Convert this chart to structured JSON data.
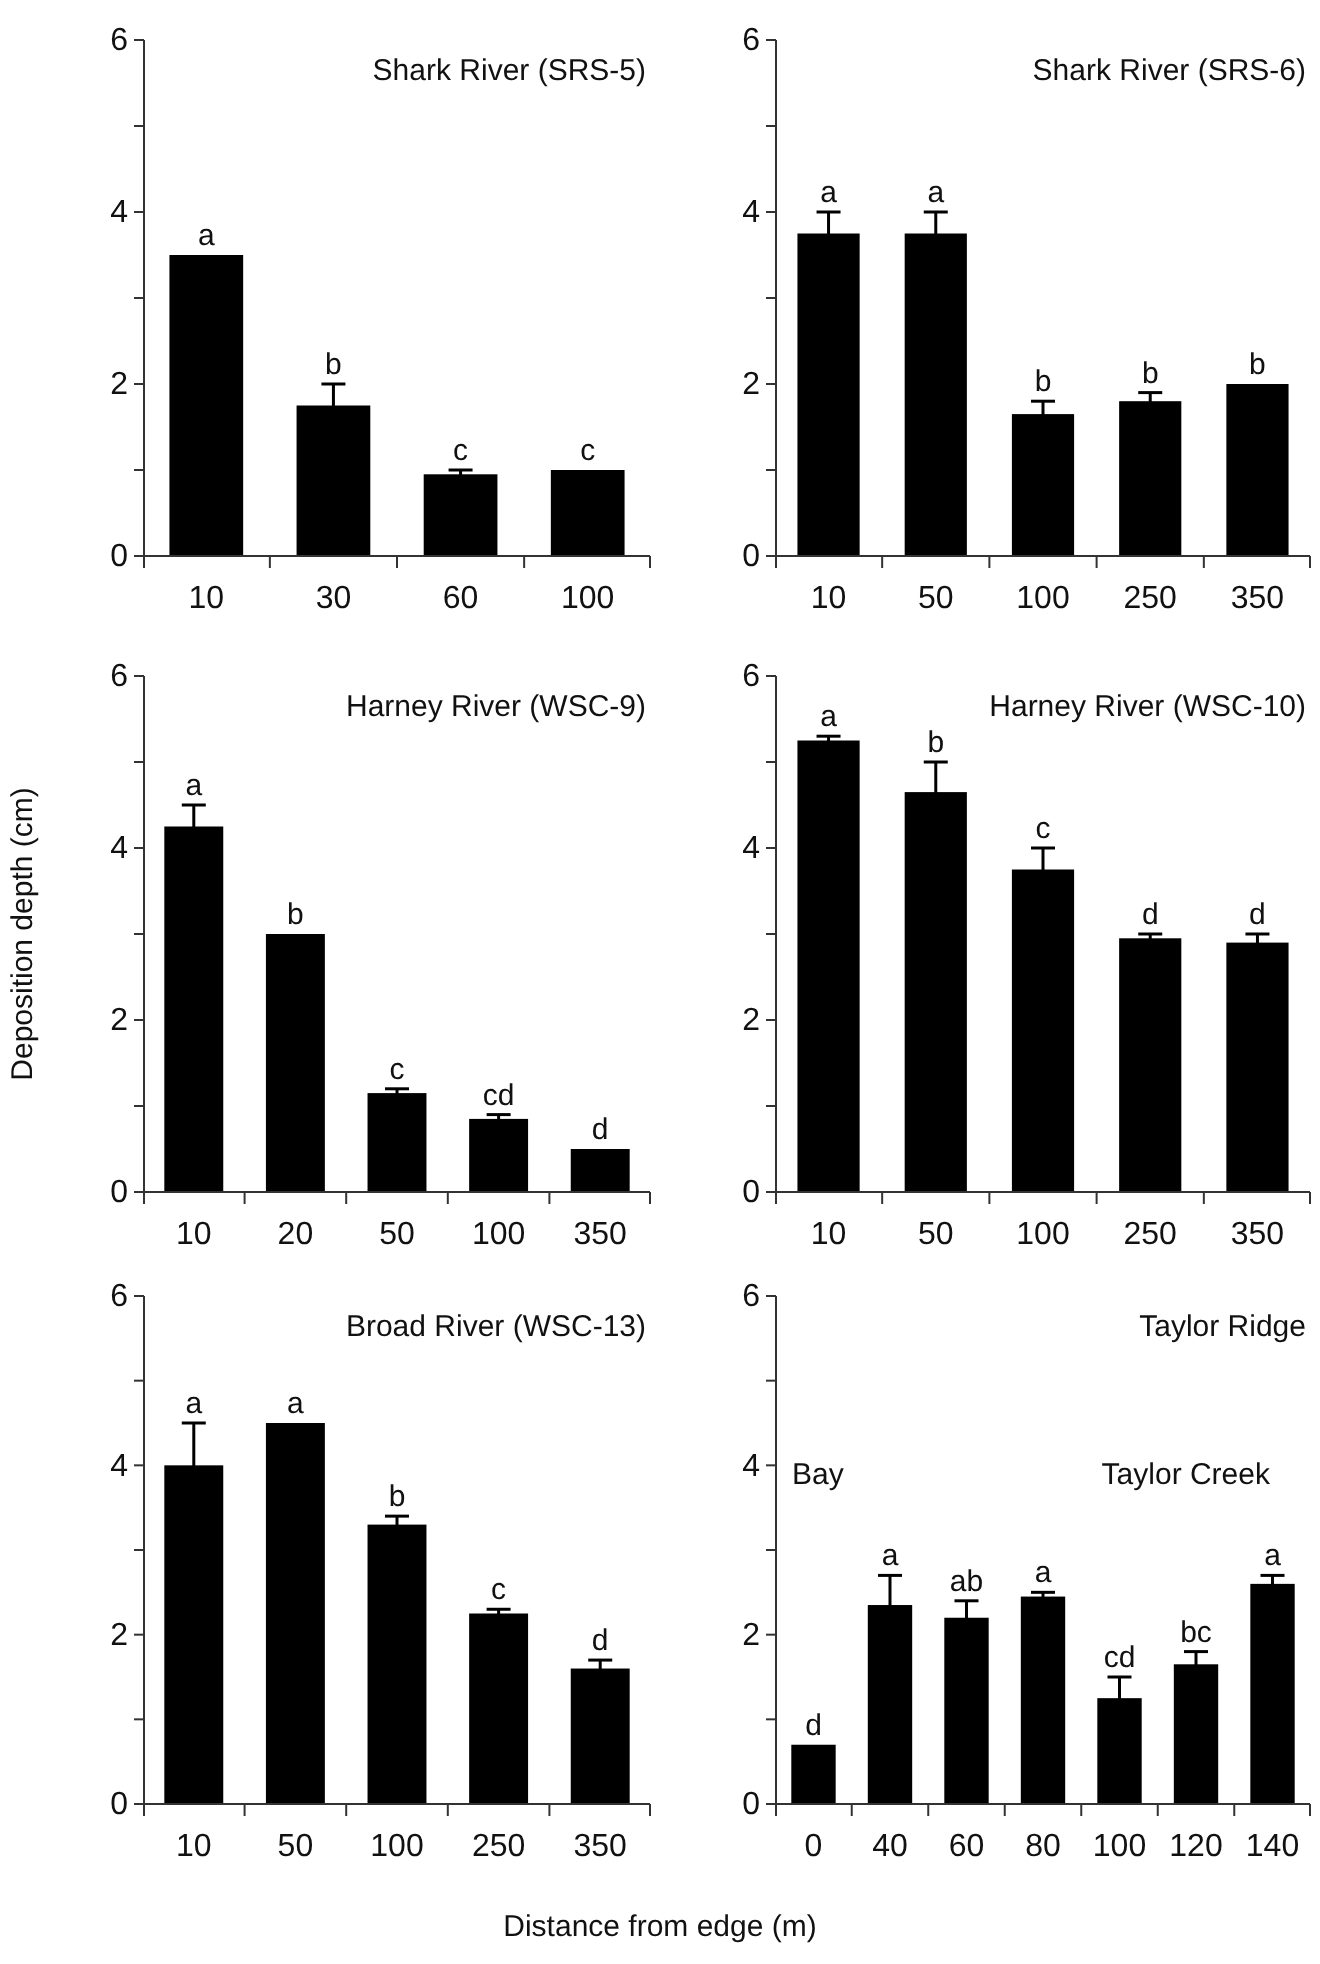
{
  "chart_data": [
    {
      "type": "bar",
      "title": "Shark River (SRS-5)",
      "categories": [
        "10",
        "30",
        "60",
        "100"
      ],
      "values": [
        3.5,
        1.75,
        0.95,
        1.0
      ],
      "errors": [
        null,
        0.25,
        0.05,
        null
      ],
      "color": "#000000",
      "ylim": [
        0,
        6
      ],
      "yticks": [
        0,
        {
          "value": 1,
          "label": null
        },
        2,
        {
          "value": 3,
          "label": null
        },
        4,
        {
          "value": 5,
          "label": null
        },
        6
      ],
      "annotations": [
        {
          "text": "a",
          "x": "10",
          "y": 3.5
        },
        {
          "text": "b",
          "x": "30",
          "y": 2.0
        },
        {
          "text": "c",
          "x": "60",
          "y": 1.0
        },
        {
          "text": "c",
          "x": "100",
          "y": 1.0
        }
      ]
    },
    {
      "type": "bar",
      "title": "Shark River (SRS-6)",
      "categories": [
        "10",
        "50",
        "100",
        "250",
        "350"
      ],
      "values": [
        3.75,
        3.75,
        1.65,
        1.8,
        2.0
      ],
      "errors": [
        0.25,
        0.25,
        0.15,
        0.1,
        null
      ],
      "color": "#000000",
      "ylim": [
        0,
        6
      ],
      "yticks": [
        0,
        {
          "value": 1,
          "label": null
        },
        2,
        {
          "value": 3,
          "label": null
        },
        4,
        {
          "value": 5,
          "label": null
        },
        6
      ],
      "annotations": [
        {
          "text": "a",
          "x": "10",
          "y": 4.0
        },
        {
          "text": "a",
          "x": "50",
          "y": 4.0
        },
        {
          "text": "b",
          "x": "100",
          "y": 1.8
        },
        {
          "text": "b",
          "x": "250",
          "y": 1.9
        },
        {
          "text": "b",
          "x": "350",
          "y": 2.0
        }
      ]
    },
    {
      "type": "bar",
      "title": "Harney River (WSC-9)",
      "ylabel": "Deposition depth (cm)",
      "categories": [
        "10",
        "20",
        "50",
        "100",
        "350"
      ],
      "values": [
        4.25,
        3.0,
        1.15,
        0.85,
        0.5
      ],
      "errors": [
        0.25,
        null,
        0.05,
        0.05,
        null
      ],
      "color": "#000000",
      "ylim": [
        0,
        6
      ],
      "yticks": [
        0,
        {
          "value": 1,
          "label": null
        },
        2,
        {
          "value": 3,
          "label": null
        },
        4,
        {
          "value": 5,
          "label": null
        },
        6
      ],
      "annotations": [
        {
          "text": "a",
          "x": "10",
          "y": 4.5
        },
        {
          "text": "b",
          "x": "20",
          "y": 3.0
        },
        {
          "text": "c",
          "x": "50",
          "y": 1.2
        },
        {
          "text": "cd",
          "x": "100",
          "y": 0.9
        },
        {
          "text": "d",
          "x": "350",
          "y": 0.5
        }
      ]
    },
    {
      "type": "bar",
      "title": "Harney River (WSC-10)",
      "categories": [
        "10",
        "50",
        "100",
        "250",
        "350"
      ],
      "values": [
        5.25,
        4.65,
        3.75,
        2.95,
        2.9
      ],
      "errors": [
        0.05,
        0.35,
        0.25,
        0.05,
        0.1
      ],
      "color": "#000000",
      "ylim": [
        0,
        6
      ],
      "yticks": [
        0,
        {
          "value": 1,
          "label": null
        },
        2,
        {
          "value": 3,
          "label": null
        },
        4,
        {
          "value": 5,
          "label": null
        },
        6
      ],
      "annotations": [
        {
          "text": "a",
          "x": "10",
          "y": 5.3
        },
        {
          "text": "b",
          "x": "50",
          "y": 5.0
        },
        {
          "text": "c",
          "x": "100",
          "y": 4.0
        },
        {
          "text": "d",
          "x": "250",
          "y": 3.0
        },
        {
          "text": "d",
          "x": "350",
          "y": 3.0
        }
      ]
    },
    {
      "type": "bar",
      "title": "Broad River (WSC-13)",
      "xlabel": "Distance from edge (m)",
      "categories": [
        "10",
        "50",
        "100",
        "250",
        "350"
      ],
      "values": [
        4.0,
        4.5,
        3.3,
        2.25,
        1.6
      ],
      "errors": [
        0.5,
        null,
        0.1,
        0.05,
        0.1
      ],
      "color": "#000000",
      "ylim": [
        0,
        6
      ],
      "yticks": [
        0,
        {
          "value": 1,
          "label": null
        },
        2,
        {
          "value": 3,
          "label": null
        },
        4,
        {
          "value": 5,
          "label": null
        },
        6
      ],
      "annotations": [
        {
          "text": "a",
          "x": "10",
          "y": 4.5
        },
        {
          "text": "a",
          "x": "50",
          "y": 4.5
        },
        {
          "text": "b",
          "x": "100",
          "y": 3.4
        },
        {
          "text": "c",
          "x": "250",
          "y": 2.3
        },
        {
          "text": "d",
          "x": "350",
          "y": 1.7
        }
      ]
    },
    {
      "type": "bar",
      "title": "Taylor Ridge",
      "categories": [
        "0",
        "40",
        "60",
        "80",
        "100",
        "120",
        "140"
      ],
      "values": [
        0.7,
        2.35,
        2.2,
        2.45,
        1.25,
        1.65,
        2.6
      ],
      "errors": [
        null,
        0.35,
        0.2,
        0.05,
        0.25,
        0.15,
        0.1
      ],
      "color": "#000000",
      "ylim": [
        0,
        6
      ],
      "yticks": [
        0,
        {
          "value": 1,
          "label": null
        },
        2,
        {
          "value": 3,
          "label": null
        },
        4,
        {
          "value": 5,
          "label": null
        },
        6
      ],
      "annotations": [
        "Bay",
        "Taylor Creek",
        {
          "text": "d",
          "x": "0",
          "y": 0.7
        },
        {
          "text": "a",
          "x": "40",
          "y": 2.7
        },
        {
          "text": "ab",
          "x": "60",
          "y": 2.4
        },
        {
          "text": "a",
          "x": "80",
          "y": 2.5
        },
        {
          "text": "cd",
          "x": "100",
          "y": 1.5
        },
        {
          "text": "bc",
          "x": "120",
          "y": 1.8
        },
        {
          "text": "a",
          "x": "140",
          "y": 2.7
        }
      ]
    }
  ]
}
